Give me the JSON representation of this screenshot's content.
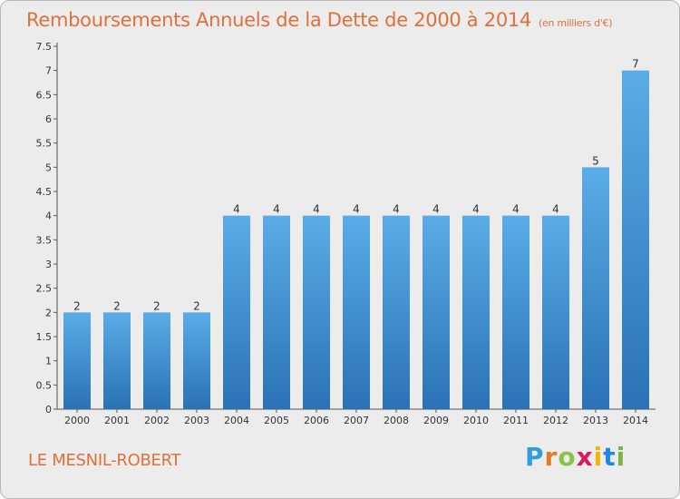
{
  "header": {
    "title": "Remboursements Annuels de la Dette de 2000 à 2014",
    "unit": "(en milliers d'€)"
  },
  "commune": "LE MESNIL-ROBERT",
  "logo": {
    "letters": [
      "P",
      "r",
      "o",
      "x",
      "i",
      "t",
      "i"
    ],
    "colors": [
      "#2f9fd8",
      "#e07b2a",
      "#8bc34a",
      "#d81b60",
      "#f4b400",
      "#1e88e5",
      "#7cb342"
    ]
  },
  "chart_data": {
    "type": "bar",
    "title": "Remboursements Annuels de la Dette de 2000 à 2014",
    "categories": [
      "2000",
      "2001",
      "2002",
      "2003",
      "2004",
      "2005",
      "2006",
      "2007",
      "2008",
      "2009",
      "2010",
      "2011",
      "2012",
      "2013",
      "2014"
    ],
    "values": [
      2,
      2,
      2,
      2,
      4,
      4,
      4,
      4,
      4,
      4,
      4,
      4,
      4,
      5,
      7
    ],
    "data_labels": [
      "2",
      "2",
      "2",
      "2",
      "4",
      "4",
      "4",
      "4",
      "4",
      "4",
      "4",
      "4",
      "4",
      "5",
      "7"
    ],
    "yticks": [
      "0",
      "0.5",
      "1",
      "1.5",
      "2",
      "2.5",
      "3",
      "3.5",
      "4",
      "4.5",
      "5",
      "5.5",
      "6",
      "6.5",
      "7",
      "7.5"
    ],
    "ylim": [
      0,
      7.5
    ],
    "grid": false,
    "bar_color": "#3a8fd6",
    "bar_color_light": "#5aace8",
    "bar_color_dark": "#2a72b5"
  }
}
